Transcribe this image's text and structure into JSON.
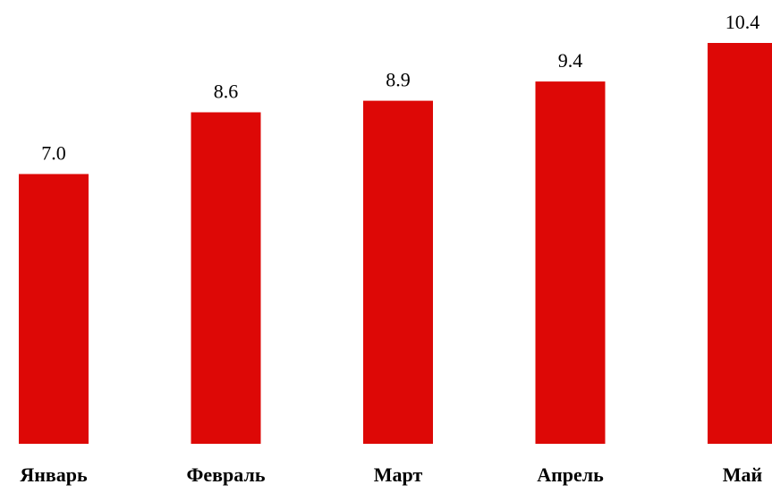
{
  "chart_data": {
    "type": "bar",
    "categories": [
      "Январь",
      "Февраль",
      "Март",
      "Апрель",
      "Май"
    ],
    "values": [
      7.0,
      8.6,
      8.9,
      9.4,
      10.4
    ],
    "value_labels": [
      "7.0",
      "8.6",
      "8.9",
      "9.4",
      "10.4"
    ],
    "title": "",
    "xlabel": "",
    "ylabel": "",
    "ylim": [
      0,
      10.4
    ],
    "grid": false,
    "legend": "none",
    "bar_color": "#dd0806"
  }
}
